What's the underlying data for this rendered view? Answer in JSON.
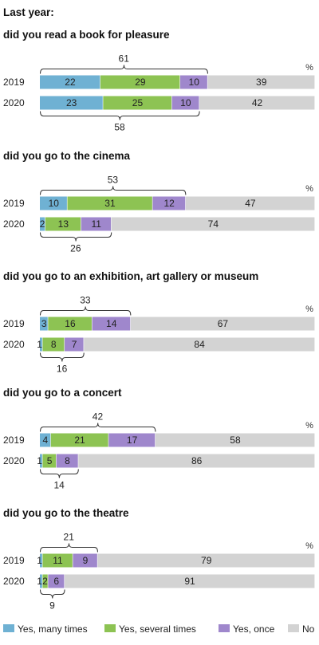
{
  "chart_data": {
    "type": "bar",
    "orientation": "horizontal-stacked",
    "title": "Last year:",
    "unit_label": "%",
    "xlim": [
      0,
      100
    ],
    "categories_legend": [
      "Yes, many times",
      "Yes, several times",
      "Yes, once",
      "No"
    ],
    "colors": [
      "#6fb1d3",
      "#8dc353",
      "#9f87cc",
      "#d3d3d3"
    ],
    "panels": [
      {
        "question": "did you read a book for pleasure",
        "rows": [
          {
            "year": "2019",
            "values": [
              22,
              29,
              10,
              39
            ],
            "labels": [
              "22",
              "29",
              "10",
              "39"
            ],
            "total_yes": 61
          },
          {
            "year": "2020",
            "values": [
              23,
              25,
              10,
              42
            ],
            "labels": [
              "23",
              "25",
              "10",
              "42"
            ],
            "total_yes": 58
          }
        ]
      },
      {
        "question": "did you go to the cinema",
        "rows": [
          {
            "year": "2019",
            "values": [
              10,
              31,
              12,
              47
            ],
            "labels": [
              "10",
              "31",
              "12",
              "47"
            ],
            "total_yes": 53
          },
          {
            "year": "2020",
            "values": [
              2,
              13,
              11,
              74
            ],
            "labels": [
              "2",
              "13",
              "11",
              "74"
            ],
            "total_yes": 26
          }
        ]
      },
      {
        "question": "did you go to an exhibition, art gallery or museum",
        "rows": [
          {
            "year": "2019",
            "values": [
              3,
              16,
              14,
              67
            ],
            "labels": [
              "3",
              "16",
              "14",
              "67"
            ],
            "total_yes": 33
          },
          {
            "year": "2020",
            "values": [
              1,
              8,
              7,
              84
            ],
            "labels": [
              "1",
              "8",
              "7",
              "84"
            ],
            "total_yes": 16
          }
        ]
      },
      {
        "question": "did you go to a concert",
        "rows": [
          {
            "year": "2019",
            "values": [
              4,
              21,
              17,
              58
            ],
            "labels": [
              "4",
              "21",
              "17",
              "58"
            ],
            "total_yes": 42
          },
          {
            "year": "2020",
            "values": [
              1,
              5,
              8,
              86
            ],
            "labels": [
              "1",
              "5",
              "8",
              "86"
            ],
            "total_yes": 14
          }
        ]
      },
      {
        "question": "did you go to the theatre",
        "rows": [
          {
            "year": "2019",
            "values": [
              1,
              11,
              9,
              79
            ],
            "labels": [
              "1",
              "11",
              "9",
              "79"
            ],
            "total_yes": 21
          },
          {
            "year": "2020",
            "values": [
              1,
              2,
              6,
              91
            ],
            "labels": [
              "1",
              "2",
              "6",
              "91"
            ],
            "total_yes": 9
          }
        ]
      }
    ]
  }
}
